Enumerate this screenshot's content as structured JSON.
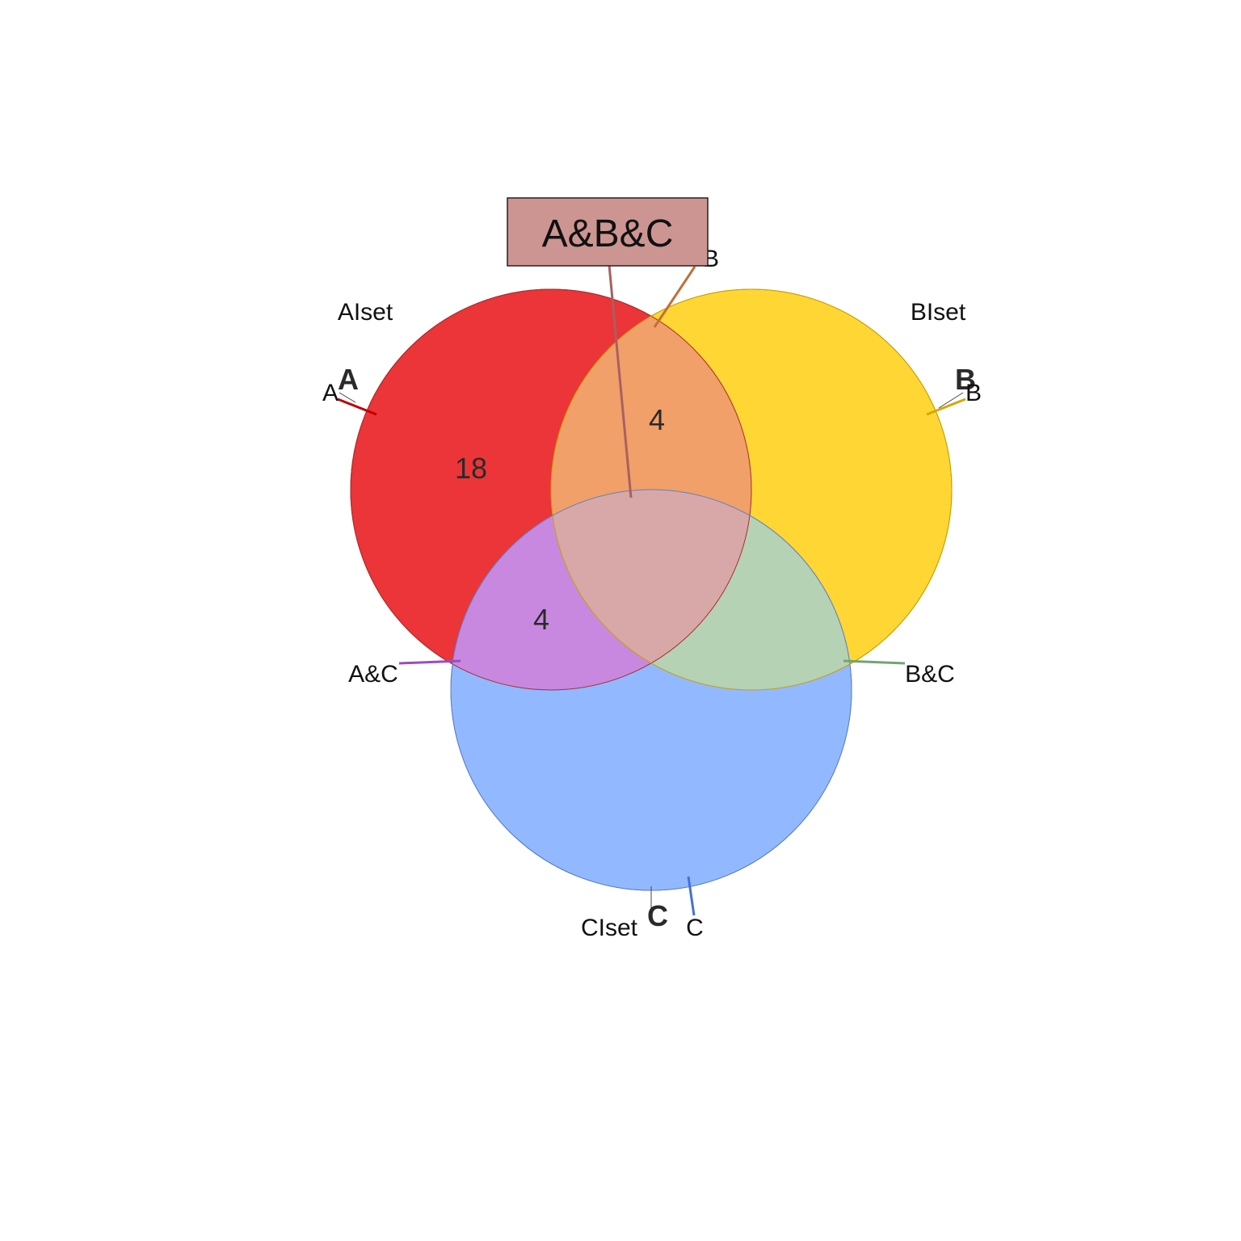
{
  "sets": [
    {
      "id": "A",
      "set_label": "AIset",
      "letter": "A",
      "color": "#e8191c"
    },
    {
      "id": "B",
      "set_label": "BIset",
      "letter": "B",
      "color": "#ffcc00"
    },
    {
      "id": "C",
      "set_label": "CIset",
      "letter": "C",
      "color": "#7fadff"
    }
  ],
  "regions": {
    "A_only": "18",
    "A_and_B": "4",
    "A_and_C": "4"
  },
  "leader_labels": {
    "A": "A",
    "B": "B",
    "C": "C",
    "A_B": "B",
    "A_C": "A&C",
    "B_C": "B&C"
  },
  "callout": {
    "text": "A&B&C",
    "fill": "#cd9592"
  },
  "leader_colors": {
    "A": "#c00000",
    "B": "#d4a800",
    "C": "#4472d6",
    "A_B": "#c0703a",
    "A_C": "#9b4cc0",
    "B_C": "#72a472",
    "A_B_C": "#a86060"
  }
}
